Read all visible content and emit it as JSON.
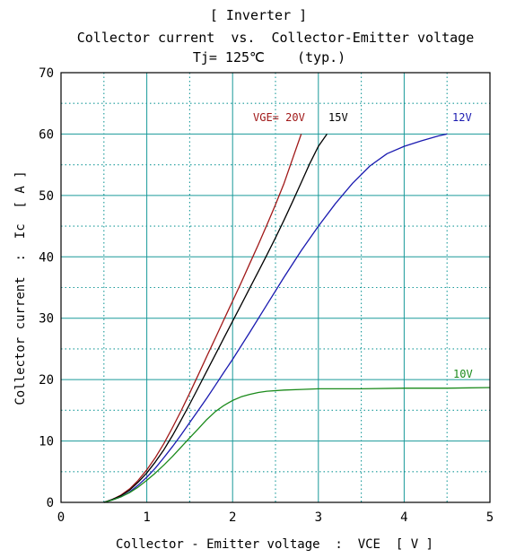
{
  "chart_data": {
    "type": "line",
    "title": "[ Inverter ]",
    "subtitle": "Collector current  vs.  Collector-Emitter voltage",
    "condition": "Tj= 125℃    (typ.)",
    "xlabel": "Collector - Emitter voltage  :  VCE  [ V ]",
    "ylabel": "Collector current  :  Ic  [ A ]",
    "xlim": [
      0,
      5
    ],
    "ylim": [
      0,
      70
    ],
    "xticks": [
      "0",
      "1",
      "2",
      "3",
      "4",
      "5"
    ],
    "yticks": [
      "0",
      "10",
      "20",
      "30",
      "40",
      "50",
      "60",
      "70"
    ],
    "grid": true,
    "series": [
      {
        "name": "VGE= 20V",
        "color": "#a01818",
        "x": [
          0.5,
          0.6,
          0.7,
          0.8,
          0.9,
          1.0,
          1.1,
          1.2,
          1.3,
          1.4,
          1.5,
          1.6,
          1.7,
          1.8,
          1.9,
          2.0,
          2.1,
          2.2,
          2.3,
          2.4,
          2.5,
          2.6,
          2.7,
          2.8
        ],
        "y": [
          0,
          0.5,
          1.2,
          2.2,
          3.6,
          5.3,
          7.3,
          9.6,
          12.2,
          14.9,
          17.8,
          20.8,
          23.8,
          26.8,
          29.8,
          32.8,
          35.8,
          38.9,
          42.0,
          45.2,
          48.5,
          52.0,
          56.0,
          60.0
        ]
      },
      {
        "name": "15V",
        "color": "#000000",
        "x": [
          0.5,
          0.6,
          0.7,
          0.8,
          0.9,
          1.0,
          1.1,
          1.2,
          1.3,
          1.4,
          1.5,
          1.6,
          1.7,
          1.8,
          1.9,
          2.0,
          2.1,
          2.2,
          2.3,
          2.4,
          2.5,
          2.6,
          2.7,
          2.8,
          2.9,
          3.0,
          3.1
        ],
        "y": [
          0,
          0.5,
          1.1,
          2.0,
          3.3,
          4.8,
          6.6,
          8.6,
          10.9,
          13.4,
          16.0,
          18.7,
          21.4,
          24.1,
          26.8,
          29.5,
          32.2,
          34.9,
          37.6,
          40.3,
          43.1,
          46.0,
          49.0,
          52.1,
          55.2,
          58.0,
          60.0
        ]
      },
      {
        "name": "12V",
        "color": "#1a1ab0",
        "x": [
          0.5,
          0.6,
          0.7,
          0.8,
          0.9,
          1.0,
          1.1,
          1.2,
          1.3,
          1.4,
          1.5,
          1.6,
          1.7,
          1.8,
          1.9,
          2.0,
          2.2,
          2.4,
          2.6,
          2.8,
          3.0,
          3.2,
          3.4,
          3.6,
          3.8,
          4.0,
          4.2,
          4.4,
          4.5
        ],
        "y": [
          0,
          0.4,
          0.9,
          1.7,
          2.8,
          4.1,
          5.6,
          7.3,
          9.1,
          11.0,
          13.0,
          15.0,
          17.0,
          19.1,
          21.2,
          23.3,
          27.7,
          32.2,
          36.7,
          41.0,
          45.0,
          48.7,
          52.0,
          54.8,
          56.8,
          58.0,
          58.9,
          59.7,
          60.0
        ]
      },
      {
        "name": "10V",
        "color": "#1a8a1a",
        "x": [
          0.5,
          0.6,
          0.7,
          0.8,
          0.9,
          1.0,
          1.1,
          1.2,
          1.3,
          1.4,
          1.5,
          1.6,
          1.7,
          1.8,
          1.9,
          2.0,
          2.1,
          2.2,
          2.3,
          2.4,
          2.6,
          2.8,
          3.0,
          3.5,
          4.0,
          4.5,
          5.0
        ],
        "y": [
          0,
          0.4,
          0.9,
          1.6,
          2.5,
          3.6,
          4.8,
          6.1,
          7.5,
          9.0,
          10.5,
          12.0,
          13.5,
          14.8,
          15.8,
          16.6,
          17.2,
          17.6,
          17.9,
          18.1,
          18.3,
          18.4,
          18.5,
          18.5,
          18.6,
          18.6,
          18.7
        ]
      }
    ]
  }
}
